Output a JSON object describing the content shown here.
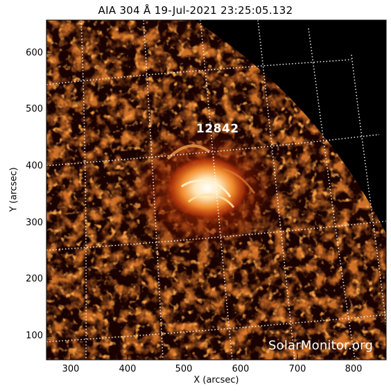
{
  "title": "AIA 304 Å 19-Jul-2021 23:25:05.132",
  "xlabel": "X (arcsec)",
  "ylabel": "Y (arcsec)",
  "x_ticks": [
    "300",
    "400",
    "500",
    "600",
    "700",
    "800"
  ],
  "y_ticks": [
    "100",
    "200",
    "300",
    "400",
    "500",
    "600"
  ],
  "x_tick_values": [
    300,
    400,
    500,
    600,
    700,
    800
  ],
  "y_tick_values": [
    100,
    200,
    300,
    400,
    500,
    600
  ],
  "x_range": [
    257,
    857
  ],
  "y_range": [
    63,
    663
  ],
  "region_label": "12842",
  "watermark": "SolarMonitor.org",
  "colors": {
    "background": "#000000",
    "grid": "#ffffff",
    "emission_dark": "#5a1000",
    "emission_mid": "#c8400a",
    "emission_bright": "#ffd9a0"
  }
}
